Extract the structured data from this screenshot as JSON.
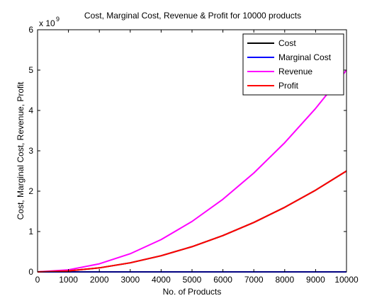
{
  "chart_data": {
    "type": "line",
    "title": "Cost, Marginal Cost, Revenue & Profit for 10000 products",
    "xlabel": "No. of Products",
    "ylabel": "Cost, Marginal Cost, Revenue, Profit",
    "y_exponent_base": "x 10",
    "y_exponent_power": "9",
    "xlim": [
      0,
      10000
    ],
    "ylim": [
      0,
      6
    ],
    "x_ticks": [
      "0",
      "1000",
      "2000",
      "3000",
      "4000",
      "5000",
      "6000",
      "7000",
      "8000",
      "9000",
      "10000"
    ],
    "y_ticks": [
      "0",
      "1",
      "2",
      "3",
      "4",
      "5",
      "6"
    ],
    "grid": false,
    "legend_position": "top-right",
    "x": [
      0,
      1000,
      2000,
      3000,
      4000,
      5000,
      6000,
      7000,
      8000,
      9000,
      10000
    ],
    "series": [
      {
        "name": "Cost",
        "color": "#000000",
        "values": [
          0,
          0.025,
          0.1,
          0.225,
          0.4,
          0.625,
          0.9,
          1.225,
          1.6,
          2.025,
          2.5
        ]
      },
      {
        "name": "Marginal Cost",
        "color": "#0000ff",
        "values": [
          0,
          1e-05,
          2e-05,
          3e-05,
          4e-05,
          5e-05,
          6e-05,
          7e-05,
          8e-05,
          9e-05,
          0.0001
        ]
      },
      {
        "name": "Revenue",
        "color": "#ff00ff",
        "values": [
          0,
          0.05,
          0.2,
          0.45,
          0.8,
          1.25,
          1.8,
          2.45,
          3.2,
          4.05,
          5.0
        ]
      },
      {
        "name": "Profit",
        "color": "#ff0000",
        "values": [
          0,
          0.025,
          0.1,
          0.225,
          0.4,
          0.625,
          0.9,
          1.225,
          1.6,
          2.025,
          2.5
        ]
      }
    ]
  }
}
